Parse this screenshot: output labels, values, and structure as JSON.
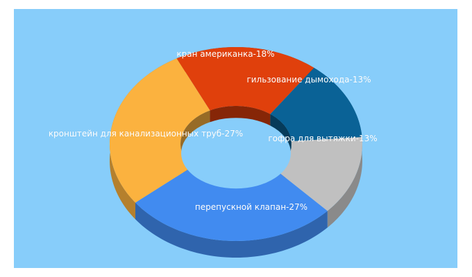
{
  "chart_data": {
    "type": "pie",
    "style": "3d-donut",
    "slices": [
      {
        "label": "кран американка-18%",
        "value": 18,
        "color": "#e0400c"
      },
      {
        "label": "гильзование дымохода-13%",
        "value": 13,
        "color": "#0a6296"
      },
      {
        "label": "гофра для вытяжки-13%",
        "value": 13,
        "color": "#c0c0c0"
      },
      {
        "label": "перепускной клапан-27%",
        "value": 27,
        "color": "#418bf0"
      },
      {
        "label": "кронштейн для канализационных труб-27%",
        "value": 27,
        "color": "#fbb23f"
      }
    ],
    "background_color": "#87cdfa"
  }
}
